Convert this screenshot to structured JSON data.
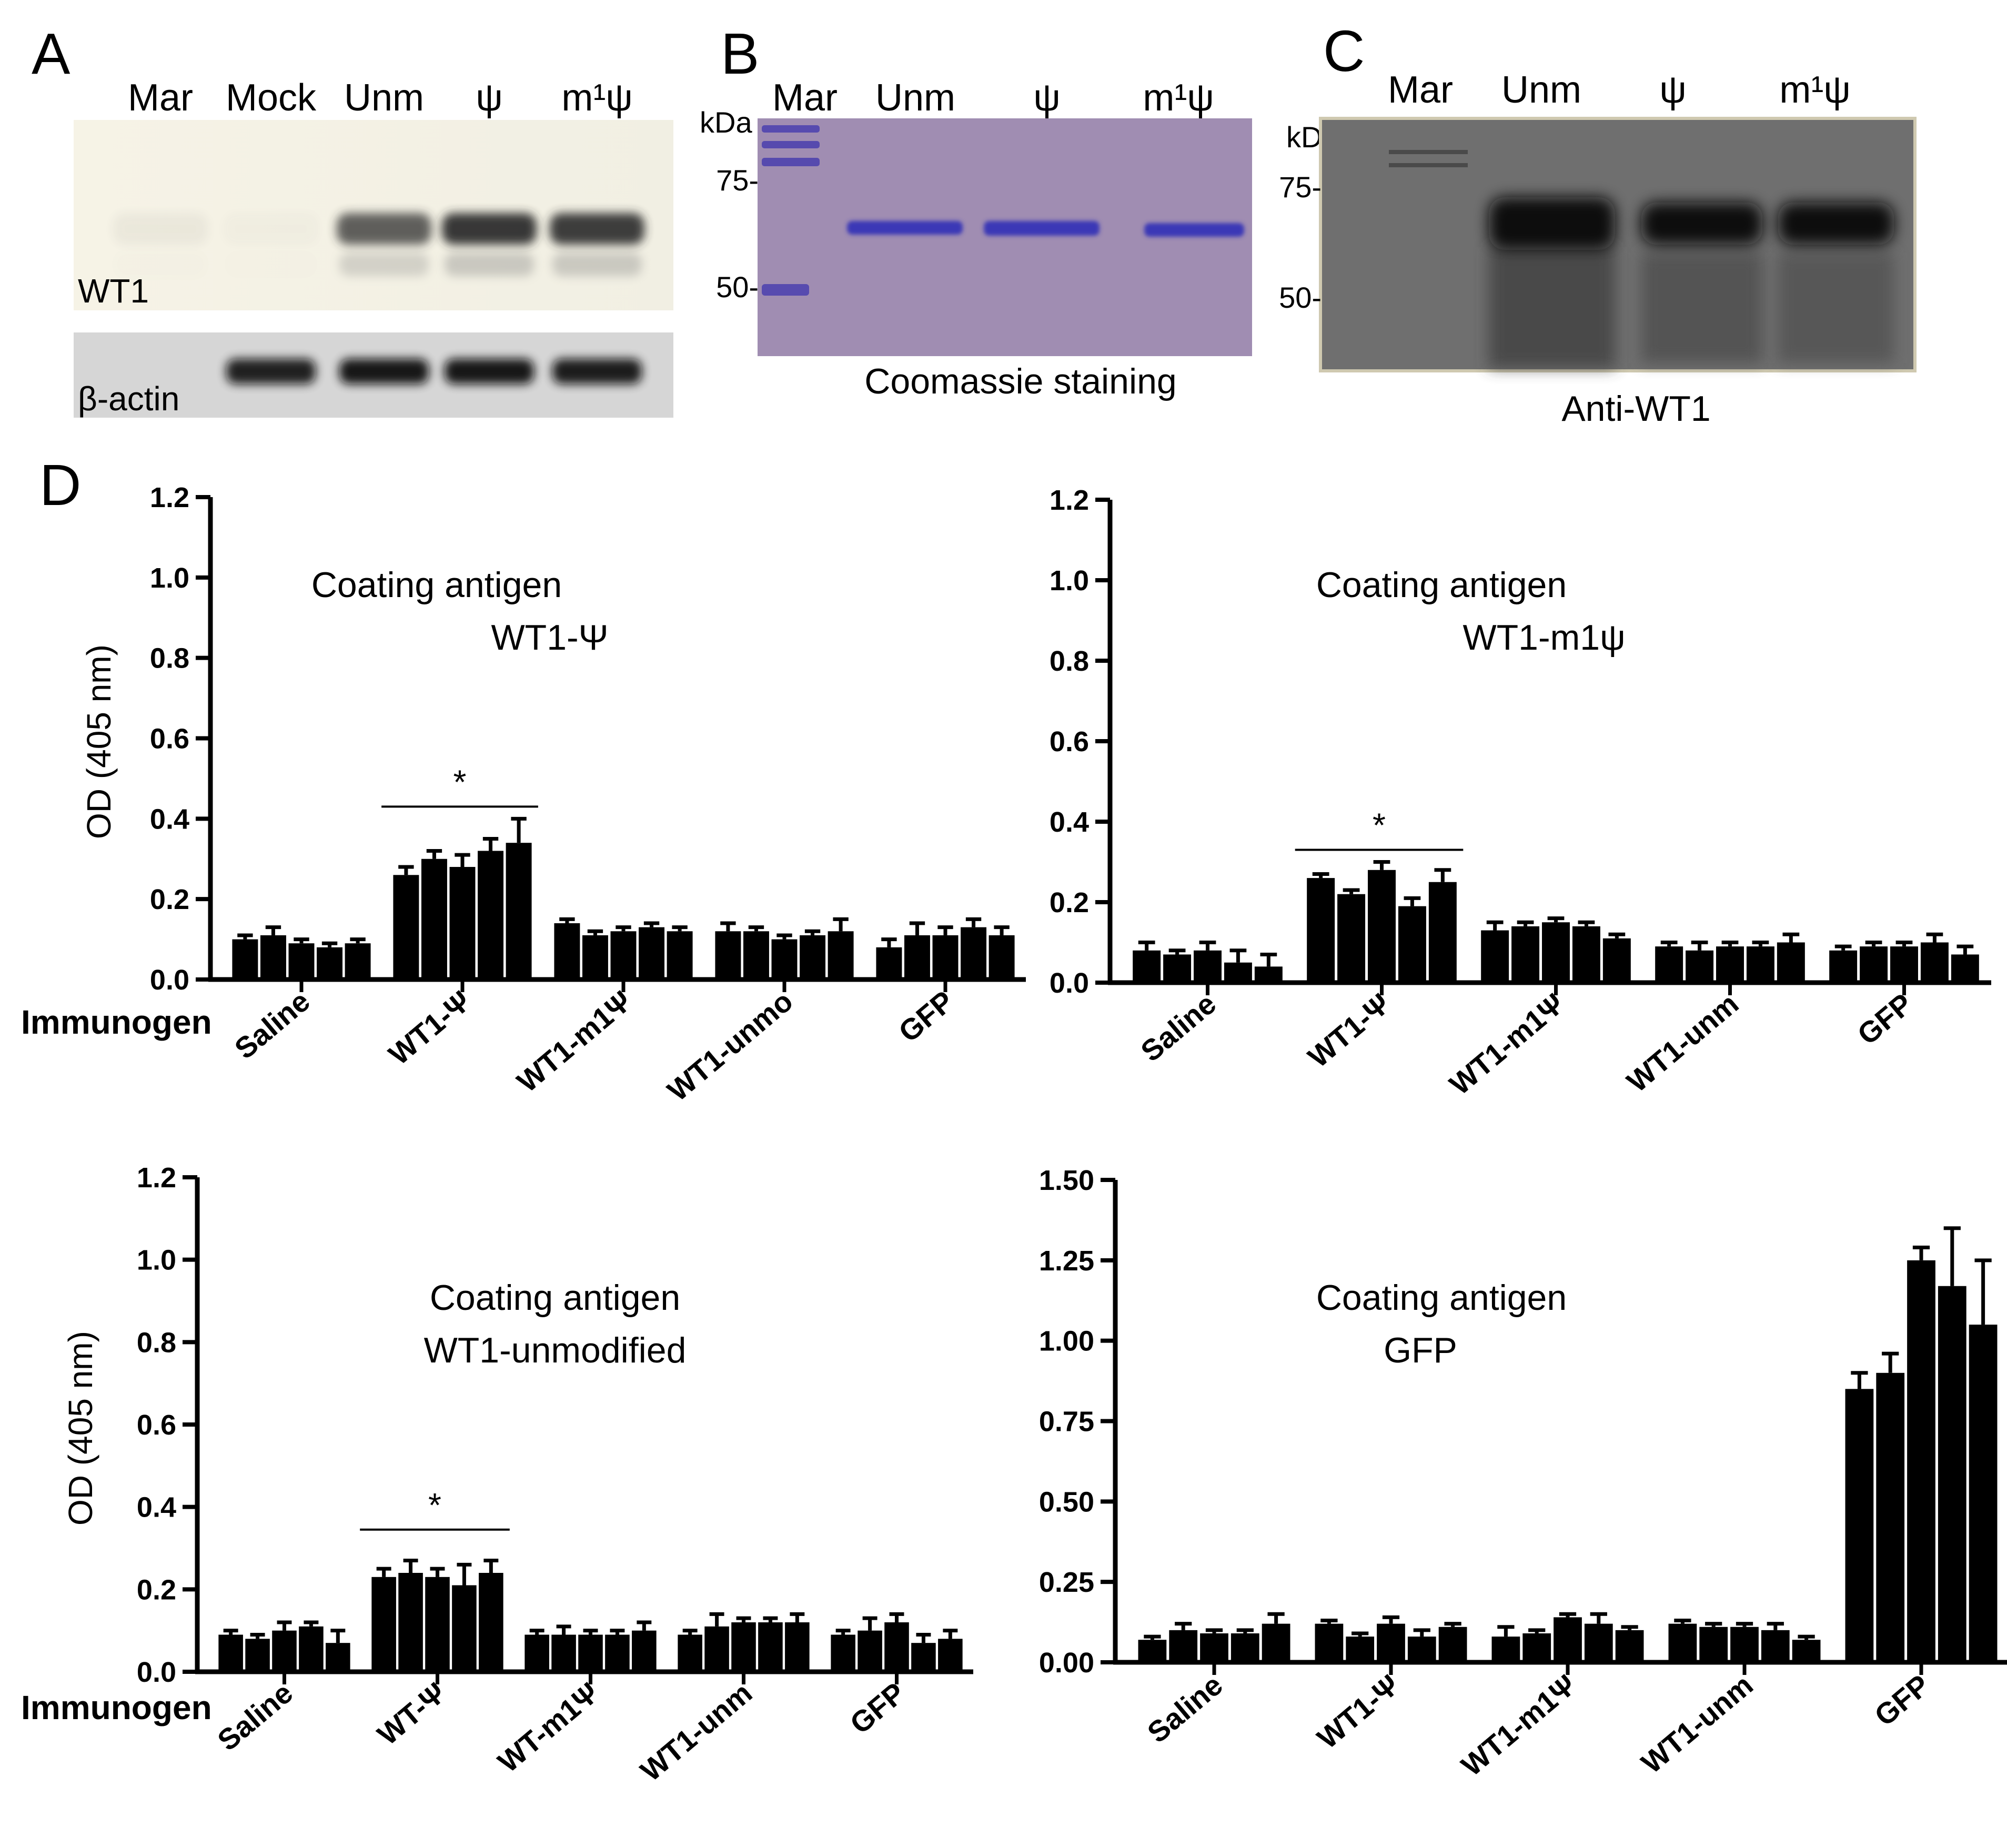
{
  "panel_letters": {
    "a": "A",
    "b": "B",
    "c": "C",
    "d": "D"
  },
  "panel_a": {
    "lanes": [
      "Mar",
      "Mock",
      "Unm",
      "ψ",
      "m¹ψ"
    ],
    "blot_labels": {
      "top": "WT1",
      "bottom": "β-actin"
    },
    "band_intensity": {
      "wt1": [
        0.05,
        0.02,
        0.75,
        0.95,
        0.92
      ],
      "actin": [
        0.0,
        0.9,
        0.95,
        0.95,
        0.92
      ]
    }
  },
  "panel_b": {
    "lanes": [
      "Mar",
      "Unm",
      "ψ",
      "m¹ψ"
    ],
    "unit": "kDa",
    "markers": [
      "75-",
      "50-"
    ],
    "caption": "Coomassie staining"
  },
  "panel_c": {
    "lanes": [
      "Mar",
      "Unm",
      "ψ",
      "m¹ψ"
    ],
    "unit": "kDa",
    "markers": [
      "75-",
      "50-"
    ],
    "caption": "Anti-WT1"
  },
  "colors": {
    "bar": "#000000",
    "coomassie_bg": "#9a84ad",
    "coomassie_band": "#3f3db8",
    "blot_c_bg": "#6e6e6e",
    "blot_a_bg": "#f4f1e4"
  },
  "chart_data": [
    {
      "type": "bar",
      "title": "Coating antigen",
      "subtitle": "WT1-Ψ",
      "ylabel": "OD (405 nm)",
      "xlabel": "Immunogen",
      "ylim": [
        0,
        1.2
      ],
      "yticks": [
        "0.0",
        "0.2",
        "0.4",
        "0.6",
        "0.8",
        "1.0",
        "1.2"
      ],
      "categories": [
        "Saline",
        "WT1-Ψ",
        "WT1-m1Ψ",
        "WT1-unmo",
        "GFP"
      ],
      "values": [
        [
          0.1,
          0.11,
          0.09,
          0.08,
          0.09
        ],
        [
          0.26,
          0.3,
          0.28,
          0.32,
          0.34
        ],
        [
          0.14,
          0.11,
          0.12,
          0.13,
          0.12
        ],
        [
          0.12,
          0.12,
          0.1,
          0.11,
          0.12
        ],
        [
          0.08,
          0.11,
          0.11,
          0.13,
          0.11
        ]
      ],
      "errors": [
        [
          0.01,
          0.02,
          0.01,
          0.01,
          0.01
        ],
        [
          0.02,
          0.02,
          0.03,
          0.03,
          0.06
        ],
        [
          0.01,
          0.01,
          0.01,
          0.01,
          0.01
        ],
        [
          0.02,
          0.01,
          0.01,
          0.01,
          0.03
        ],
        [
          0.02,
          0.03,
          0.02,
          0.02,
          0.02
        ]
      ],
      "significance": {
        "category": 1,
        "label": "*",
        "y": 0.43
      }
    },
    {
      "type": "bar",
      "title": "Coating antigen",
      "subtitle": "WT1-m1ψ",
      "ylabel": "",
      "xlabel": "",
      "ylim": [
        0,
        1.2
      ],
      "yticks": [
        "0.0",
        "0.2",
        "0.4",
        "0.6",
        "0.8",
        "1.0",
        "1.2"
      ],
      "categories": [
        "Saline",
        "WT1-Ψ",
        "WT1-m1Ψ",
        "WT1-unm",
        "GFP"
      ],
      "values": [
        [
          0.08,
          0.07,
          0.08,
          0.05,
          0.04
        ],
        [
          0.26,
          0.22,
          0.28,
          0.19,
          0.25
        ],
        [
          0.13,
          0.14,
          0.15,
          0.14,
          0.11
        ],
        [
          0.09,
          0.08,
          0.09,
          0.09,
          0.1
        ],
        [
          0.08,
          0.09,
          0.09,
          0.1,
          0.07
        ]
      ],
      "errors": [
        [
          0.02,
          0.01,
          0.02,
          0.03,
          0.03
        ],
        [
          0.01,
          0.01,
          0.02,
          0.02,
          0.03
        ],
        [
          0.02,
          0.01,
          0.01,
          0.01,
          0.01
        ],
        [
          0.01,
          0.02,
          0.01,
          0.01,
          0.02
        ],
        [
          0.01,
          0.01,
          0.01,
          0.02,
          0.02
        ]
      ],
      "significance": {
        "category": 1,
        "label": "*",
        "y": 0.33
      }
    },
    {
      "type": "bar",
      "title": "Coating antigen",
      "subtitle": "WT1-unmodified",
      "ylabel": "OD (405 nm)",
      "xlabel": "Immunogen",
      "ylim": [
        0,
        1.2
      ],
      "yticks": [
        "0.0",
        "0.2",
        "0.4",
        "0.6",
        "0.8",
        "1.0",
        "1.2"
      ],
      "categories": [
        "Saline",
        "WT-Ψ",
        "WT-m1Ψ",
        "WT1-unm",
        "GFP"
      ],
      "values": [
        [
          0.09,
          0.08,
          0.1,
          0.11,
          0.07
        ],
        [
          0.23,
          0.24,
          0.23,
          0.21,
          0.24
        ],
        [
          0.09,
          0.09,
          0.09,
          0.09,
          0.1
        ],
        [
          0.09,
          0.11,
          0.12,
          0.12,
          0.12
        ],
        [
          0.09,
          0.1,
          0.12,
          0.07,
          0.08
        ]
      ],
      "errors": [
        [
          0.01,
          0.01,
          0.02,
          0.01,
          0.03
        ],
        [
          0.02,
          0.03,
          0.02,
          0.05,
          0.03
        ],
        [
          0.01,
          0.02,
          0.01,
          0.01,
          0.02
        ],
        [
          0.01,
          0.03,
          0.01,
          0.01,
          0.02
        ],
        [
          0.01,
          0.03,
          0.02,
          0.02,
          0.02
        ]
      ],
      "significance": {
        "category": 1,
        "label": "*",
        "y": 0.345
      }
    },
    {
      "type": "bar",
      "title": "Coating antigen",
      "subtitle": "GFP",
      "ylabel": "",
      "xlabel": "",
      "ylim": [
        0,
        1.5
      ],
      "yticks": [
        "0.00",
        "0.25",
        "0.50",
        "0.75",
        "1.00",
        "1.25",
        "1.50"
      ],
      "categories": [
        "Saline",
        "WT1-Ψ",
        "WT1-m1Ψ",
        "WT1-unm",
        "GFP"
      ],
      "values": [
        [
          0.07,
          0.1,
          0.09,
          0.09,
          0.12
        ],
        [
          0.12,
          0.08,
          0.12,
          0.08,
          0.11
        ],
        [
          0.08,
          0.09,
          0.14,
          0.12,
          0.1
        ],
        [
          0.12,
          0.11,
          0.11,
          0.1,
          0.07
        ],
        [
          0.85,
          0.9,
          1.25,
          1.17,
          1.05
        ]
      ],
      "errors": [
        [
          0.01,
          0.02,
          0.01,
          0.01,
          0.03
        ],
        [
          0.01,
          0.01,
          0.02,
          0.02,
          0.01
        ],
        [
          0.03,
          0.01,
          0.01,
          0.03,
          0.01
        ],
        [
          0.01,
          0.01,
          0.01,
          0.02,
          0.01
        ],
        [
          0.05,
          0.06,
          0.04,
          0.18,
          0.2
        ]
      ]
    }
  ]
}
